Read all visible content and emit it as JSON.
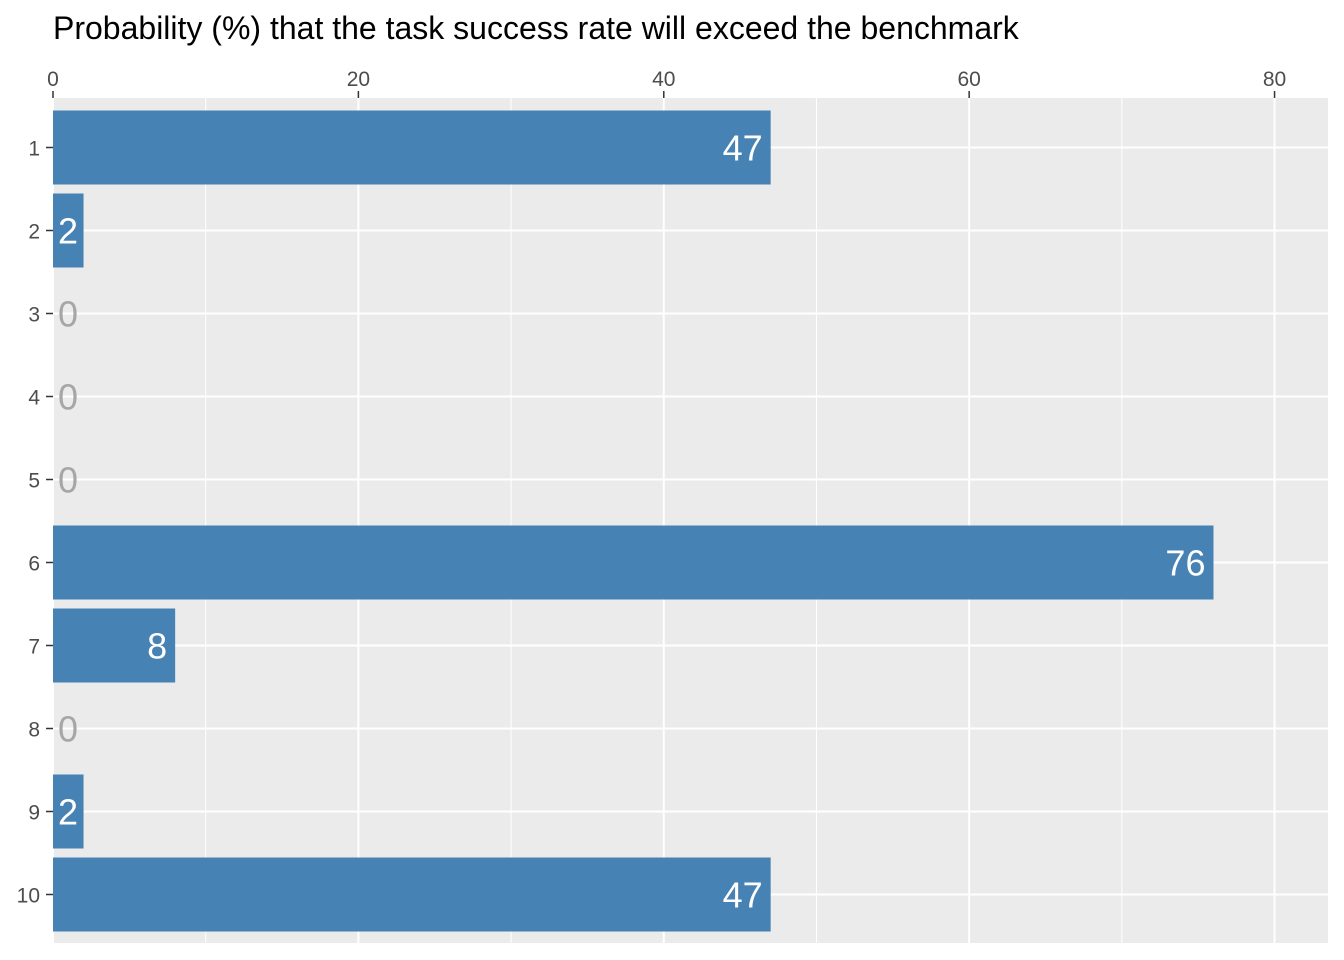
{
  "chart_data": {
    "type": "bar",
    "orientation": "horizontal",
    "title": "Probability (%) that the task success rate will exceed the benchmark",
    "xlabel": "",
    "ylabel": "",
    "categories": [
      "1",
      "2",
      "3",
      "4",
      "5",
      "6",
      "7",
      "8",
      "9",
      "10"
    ],
    "values": [
      47,
      2,
      0,
      0,
      0,
      76,
      8,
      0,
      2,
      47
    ],
    "xlim": [
      0,
      83.5
    ],
    "xticks": [
      0,
      20,
      40,
      60,
      80
    ],
    "x_axis_position": "top",
    "grid": true,
    "legend": "none",
    "colors": {
      "bar": "#4682b4",
      "panel_background": "#ebebeb",
      "grid": "#ffffff",
      "label_on_bar": "#ffffff",
      "label_zero": "#a6a6a6",
      "title": "#000000",
      "tick_label": "#4d4d4d"
    }
  }
}
